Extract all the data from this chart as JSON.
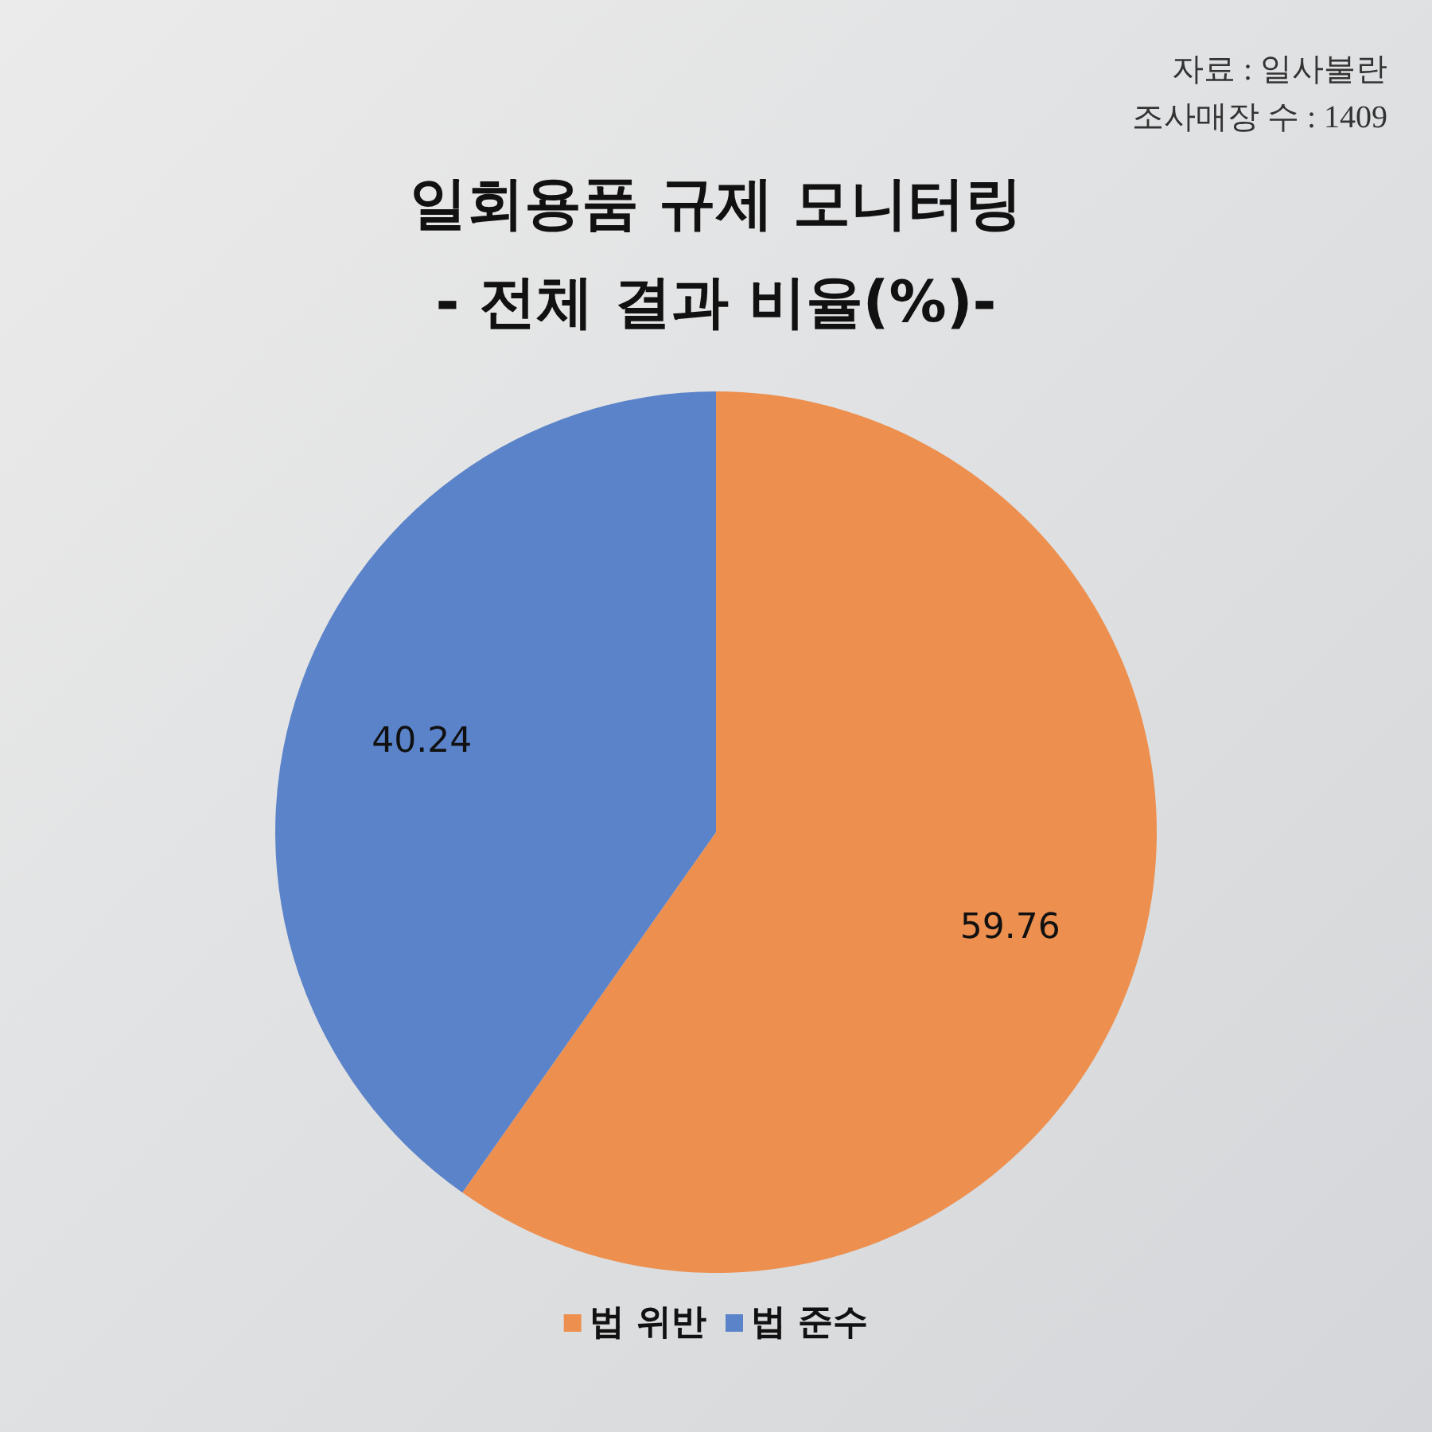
{
  "chart_data": {
    "type": "pie",
    "title": "일회용품 규제 모니터링\n- 전체 결과 비율(%)-",
    "annotations": [
      "자료 : 일사불란",
      "조사매장 수 : 1409"
    ],
    "categories": [
      "법 위반",
      "법 준수"
    ],
    "values": [
      59.76,
      40.24
    ],
    "colors": [
      "#ed8f4e",
      "#5b83c9"
    ],
    "data_labels": true,
    "legend": "bottom"
  }
}
